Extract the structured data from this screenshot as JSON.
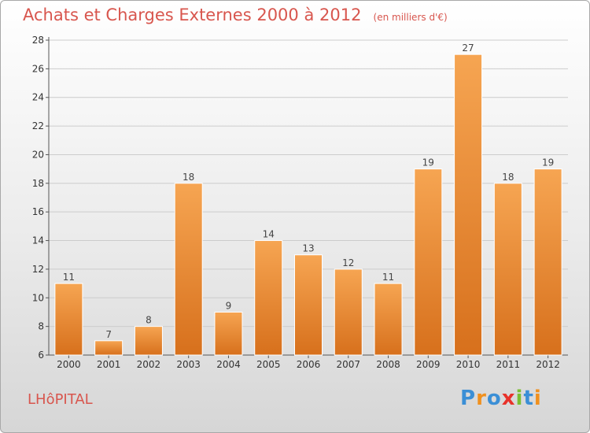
{
  "header": {
    "title": "Achats et Charges Externes 2000 à 2012",
    "subtitle": "(en milliers d'€)"
  },
  "footer": {
    "place": "LHôPITAL",
    "brand": "Proxiti",
    "brand_colors": [
      "#3b8fd6",
      "#f0901e",
      "#3b8fd6",
      "#e8322a",
      "#7bbf32",
      "#3b8fd6",
      "#f0901e"
    ]
  },
  "colors": {
    "title": "#d8564e",
    "bar_top": "#f6a552",
    "bar_bottom": "#d7701c",
    "grid": "#cccccc"
  },
  "chart_data": {
    "type": "bar",
    "title": "Achats et Charges Externes 2000 à 2012",
    "subtitle": "(en milliers d'€)",
    "categories": [
      "2000",
      "2001",
      "2002",
      "2003",
      "2004",
      "2005",
      "2006",
      "2007",
      "2008",
      "2009",
      "2010",
      "2011",
      "2012"
    ],
    "values": [
      11,
      7,
      8,
      18,
      9,
      14,
      13,
      12,
      11,
      19,
      27,
      18,
      19
    ],
    "ylim": [
      6,
      28
    ],
    "yticks": [
      6,
      8,
      10,
      12,
      14,
      16,
      18,
      20,
      22,
      24,
      26,
      28
    ],
    "grid": true,
    "data_labels": true
  }
}
